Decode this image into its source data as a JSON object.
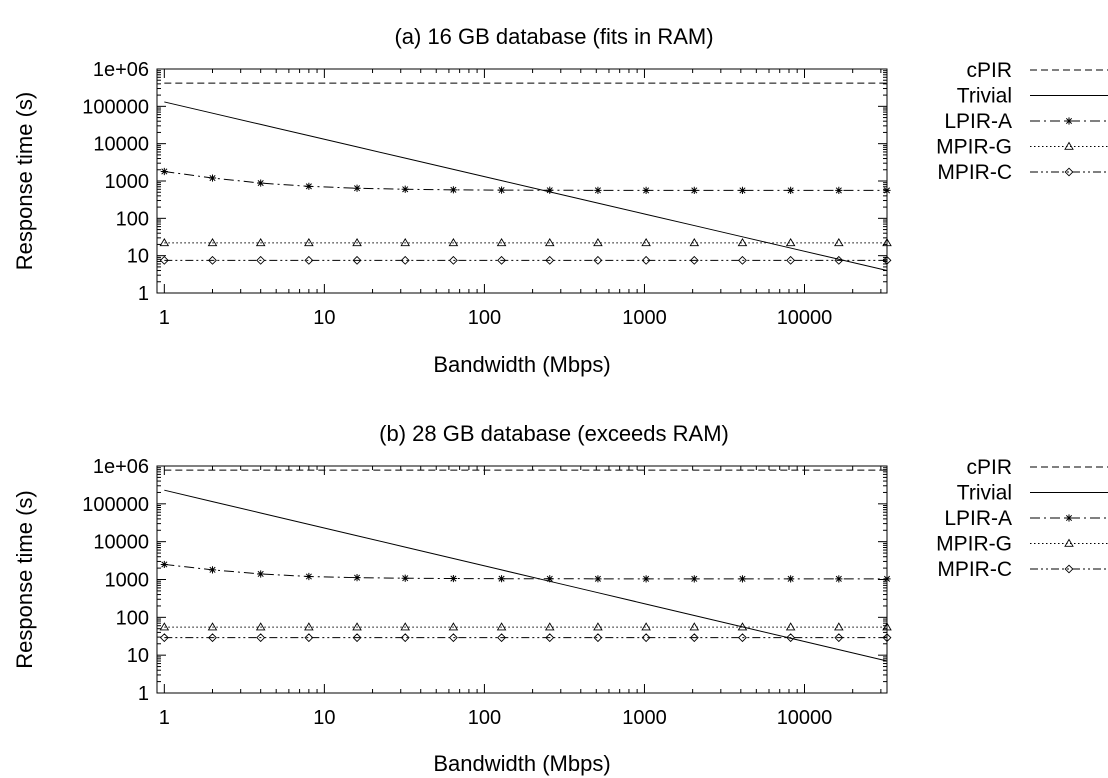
{
  "chart_data": [
    {
      "type": "line",
      "title": "(a) 16 GB database (fits in RAM)",
      "xlabel": "Bandwidth (Mbps)",
      "ylabel": "Response time (s)",
      "xscale": "log",
      "yscale": "log",
      "xlim": [
        0.9,
        32768
      ],
      "ylim": [
        1,
        1000000
      ],
      "xticks": [
        1,
        10,
        100,
        1000,
        10000
      ],
      "xtick_labels": [
        "1",
        "10",
        "100",
        "1000",
        "10000"
      ],
      "yticks": [
        1,
        10,
        100,
        1000,
        10000,
        100000,
        1000000
      ],
      "ytick_labels": [
        "1",
        "10",
        "100",
        "1000",
        "10000",
        "100000",
        "1e+06"
      ],
      "legend_position": "right",
      "x": [
        1,
        2,
        4,
        8,
        16,
        32,
        64,
        128,
        256,
        512,
        1024,
        2048,
        4096,
        8192,
        16384,
        32768
      ],
      "series": [
        {
          "name": "cPIR",
          "style": "dashed",
          "marker": "none",
          "values": [
            420000,
            420000,
            420000,
            420000,
            420000,
            420000,
            420000,
            420000,
            420000,
            420000,
            420000,
            420000,
            420000,
            420000,
            420000,
            420000
          ]
        },
        {
          "name": "Trivial",
          "style": "solid",
          "marker": "none",
          "values": [
            131072,
            65536,
            32768,
            16384,
            8192,
            4096,
            2048,
            1024,
            512,
            256,
            128,
            64,
            32,
            16,
            8,
            4
          ]
        },
        {
          "name": "LPIR-A",
          "style": "dashdot",
          "marker": "star",
          "values": [
            1800,
            1200,
            880,
            720,
            640,
            600,
            580,
            570,
            565,
            562,
            560,
            560,
            560,
            560,
            560,
            560
          ]
        },
        {
          "name": "MPIR-G",
          "style": "dotted",
          "marker": "triangle",
          "values": [
            22,
            22,
            22,
            22,
            22,
            22,
            22,
            22,
            22,
            22,
            22,
            22,
            22,
            22,
            22,
            22
          ]
        },
        {
          "name": "MPIR-C",
          "style": "dashdotdot",
          "marker": "diamond",
          "values": [
            7.5,
            7.5,
            7.5,
            7.5,
            7.5,
            7.5,
            7.5,
            7.5,
            7.5,
            7.5,
            7.5,
            7.5,
            7.5,
            7.5,
            7.5,
            7.5
          ]
        }
      ]
    },
    {
      "type": "line",
      "title": "(b) 28 GB database (exceeds RAM)",
      "xlabel": "Bandwidth (Mbps)",
      "ylabel": "Response time (s)",
      "xscale": "log",
      "yscale": "log",
      "xlim": [
        0.9,
        32768
      ],
      "ylim": [
        1,
        1000000
      ],
      "xticks": [
        1,
        10,
        100,
        1000,
        10000
      ],
      "xtick_labels": [
        "1",
        "10",
        "100",
        "1000",
        "10000"
      ],
      "yticks": [
        1,
        10,
        100,
        1000,
        10000,
        100000,
        1000000
      ],
      "ytick_labels": [
        "1",
        "10",
        "100",
        "1000",
        "10000",
        "100000",
        "1e+06"
      ],
      "legend_position": "right",
      "x": [
        1,
        2,
        4,
        8,
        16,
        32,
        64,
        128,
        256,
        512,
        1024,
        2048,
        4096,
        8192,
        16384,
        32768
      ],
      "series": [
        {
          "name": "cPIR",
          "style": "dashed",
          "marker": "none",
          "values": [
            780000,
            780000,
            780000,
            780000,
            780000,
            780000,
            780000,
            780000,
            780000,
            780000,
            780000,
            780000,
            780000,
            780000,
            780000,
            780000
          ]
        },
        {
          "name": "Trivial",
          "style": "solid",
          "marker": "none",
          "values": [
            229376,
            114688,
            57344,
            28672,
            14336,
            7168,
            3584,
            1792,
            896,
            448,
            224,
            112,
            56,
            28,
            14,
            7
          ]
        },
        {
          "name": "LPIR-A",
          "style": "dashdot",
          "marker": "star",
          "values": [
            2500,
            1800,
            1400,
            1200,
            1120,
            1080,
            1060,
            1050,
            1045,
            1042,
            1040,
            1040,
            1040,
            1040,
            1040,
            1040
          ]
        },
        {
          "name": "MPIR-G",
          "style": "dotted",
          "marker": "triangle",
          "values": [
            55,
            55,
            55,
            55,
            55,
            55,
            55,
            55,
            55,
            55,
            55,
            55,
            55,
            55,
            55,
            55
          ]
        },
        {
          "name": "MPIR-C",
          "style": "dashdotdot",
          "marker": "diamond",
          "values": [
            29,
            29,
            29,
            29,
            29,
            29,
            29,
            29,
            29,
            29,
            29,
            29,
            29,
            29,
            29,
            29
          ]
        }
      ]
    }
  ]
}
